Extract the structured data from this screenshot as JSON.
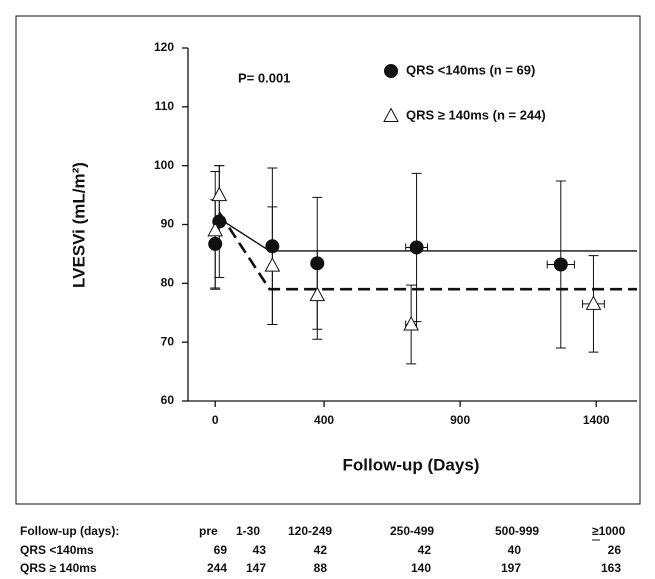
{
  "chart_data": {
    "type": "scatter",
    "y_label": "LVESVi (mL/m²)",
    "x_label": "Follow-up (Days)",
    "annotation": "P= 0.001",
    "xlim": [
      -100,
      1550
    ],
    "xticks": [
      0,
      400,
      900,
      1400
    ],
    "ylim": [
      60,
      120
    ],
    "yticks": [
      60,
      70,
      80,
      90,
      100,
      110,
      120
    ],
    "series": [
      {
        "name": "QRS <140ms (n = 69)",
        "marker": "circle",
        "color": "#111111",
        "x": [
          0,
          15,
          210,
          375,
          740,
          1270
        ],
        "x_errors": [
          0,
          0,
          0,
          0,
          40,
          50
        ],
        "values": [
          86.7,
          90.5,
          86.3,
          83.4,
          86.1,
          83.2
        ],
        "errors": [
          7.5,
          9.5,
          13.3,
          11.2,
          12.6,
          14.2
        ],
        "fit": {
          "line_style": "solid",
          "x": [
            15,
            200,
            1550
          ],
          "values": [
            91,
            85.5,
            85.5
          ]
        }
      },
      {
        "name": "QRS ≥ 140ms (n = 244)",
        "marker": "triangle",
        "color": "#ffffff",
        "x": [
          0,
          15,
          210,
          375,
          720,
          1390
        ],
        "x_errors": [
          0,
          0,
          0,
          0,
          20,
          40
        ],
        "values": [
          89,
          95,
          83,
          78,
          73,
          76.5
        ],
        "errors": [
          10,
          5,
          10,
          7.5,
          6.7,
          8.2
        ],
        "fit": {
          "line_style": "dashed",
          "x": [
            15,
            200,
            1550
          ],
          "values": [
            92,
            79,
            79
          ]
        }
      }
    ]
  },
  "table": {
    "header": [
      "Follow-up (days):",
      "pre",
      "1-30",
      "120-249",
      "250-499",
      "500-999",
      "≥1000"
    ],
    "rows": [
      [
        "QRS <140ms",
        "69",
        "43",
        "42",
        "42",
        "40",
        "26"
      ],
      [
        "QRS ≥ 140ms",
        "244",
        "147",
        "88",
        "140",
        "197",
        "163"
      ]
    ]
  }
}
